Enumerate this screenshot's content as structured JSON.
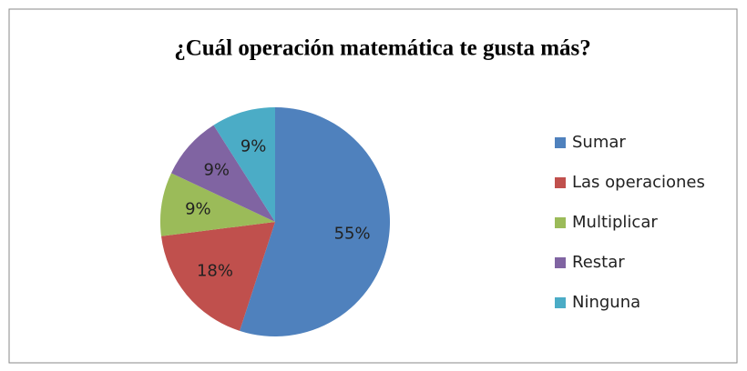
{
  "chart_data": {
    "type": "pie",
    "title": "¿Cuál operación matemática te gusta más?",
    "categories": [
      "Sumar",
      "Las operaciones",
      "Multiplicar",
      "Restar",
      "Ninguna"
    ],
    "values": [
      55,
      18,
      9,
      9,
      9
    ],
    "value_labels": [
      "55%",
      "18%",
      "9%",
      "9%",
      "9%"
    ],
    "colors": [
      "#4f81bd",
      "#c0504d",
      "#9bbb59",
      "#8064a2",
      "#4bacc6"
    ],
    "legend": "right"
  }
}
